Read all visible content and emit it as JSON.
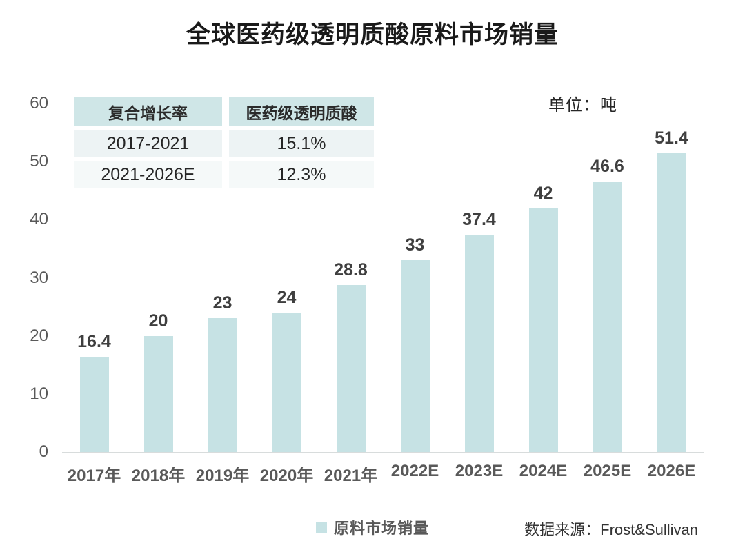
{
  "title": "全球医药级透明质酸原料市场销量",
  "unit_label": "单位：吨",
  "legend": {
    "label": "原料市场销量"
  },
  "source": "数据来源：Frost&Sullivan",
  "cagr_table": {
    "headers": [
      "复合增长率",
      "医药级透明质酸"
    ],
    "rows": [
      [
        "2017-2021",
        "15.1%"
      ],
      [
        "2021-2026E",
        "12.3%"
      ]
    ]
  },
  "chart_data": {
    "type": "bar",
    "title": "全球医药级透明质酸原料市场销量",
    "series_name": "原料市场销量",
    "categories": [
      "2017年",
      "2018年",
      "2019年",
      "2020年",
      "2021年",
      "2022E",
      "2023E",
      "2024E",
      "2025E",
      "2026E"
    ],
    "values": [
      16.4,
      20,
      23,
      24,
      28.8,
      33,
      37.4,
      42,
      46.6,
      51.4
    ],
    "unit": "吨",
    "xlabel": "",
    "ylabel": "",
    "ylim": [
      0,
      60
    ],
    "yticks": [
      0,
      10,
      20,
      30,
      40,
      50,
      60
    ],
    "grid": false,
    "legend_position": "bottom"
  },
  "colors": {
    "bar": "#c6e2e4",
    "table_header_bg": "#cfe6e7",
    "table_row1_bg": "#edf3f4",
    "table_row2_bg": "#f5f9f9",
    "legend_swatch": "#c6e2e4"
  }
}
